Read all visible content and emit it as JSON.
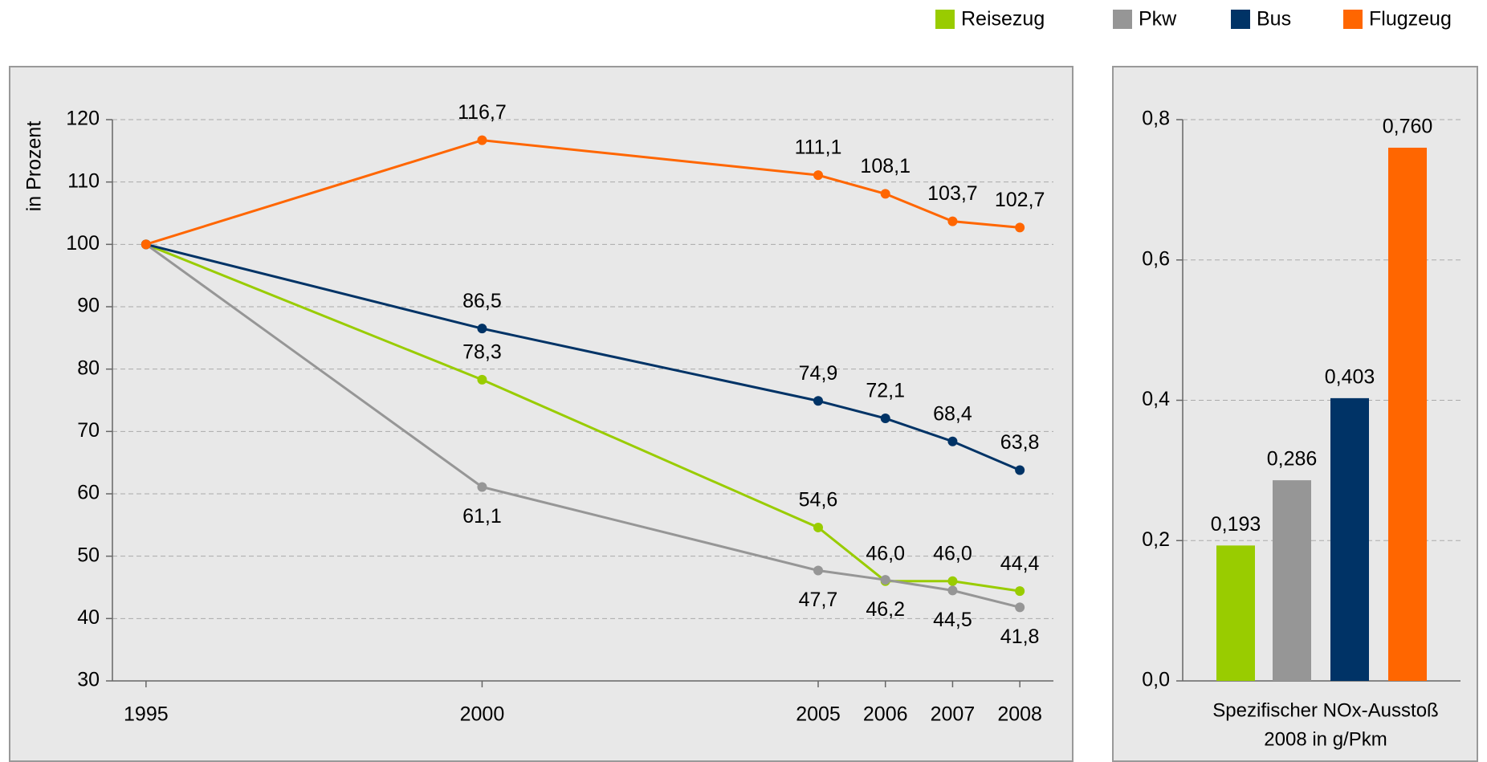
{
  "chart_data": [
    {
      "type": "line",
      "ylabel": "in Prozent",
      "x": [
        1995,
        2000,
        2005,
        2006,
        2007,
        2008
      ],
      "xlim": [
        1994.5,
        2008.5
      ],
      "xticks": [
        1995,
        2000,
        2005,
        2006,
        2007,
        2008
      ],
      "ylim": [
        30,
        120
      ],
      "yticks": [
        30,
        40,
        50,
        60,
        70,
        80,
        90,
        100,
        110,
        120
      ],
      "grid": true,
      "legend": "top-right",
      "series": [
        {
          "name": "Reisezug",
          "color": "#99cc00",
          "values": [
            100,
            78.3,
            54.6,
            46.0,
            46.0,
            44.4
          ],
          "value_labels": [
            null,
            "78,3",
            "54,6",
            "46,0",
            "46,0",
            "44,4"
          ]
        },
        {
          "name": "Pkw",
          "color": "#969696",
          "values": [
            100,
            61.1,
            47.7,
            46.2,
            44.5,
            41.8
          ],
          "value_labels": [
            null,
            "61,1",
            "47,7",
            "46,2",
            "44,5",
            "41,8"
          ]
        },
        {
          "name": "Bus",
          "color": "#003366",
          "values": [
            100,
            86.5,
            74.9,
            72.1,
            68.4,
            63.8
          ],
          "value_labels": [
            null,
            "86,5",
            "74,9",
            "72,1",
            "68,4",
            "63,8"
          ]
        },
        {
          "name": "Flugzeug",
          "color": "#ff6600",
          "values": [
            100,
            116.7,
            111.1,
            108.1,
            103.7,
            102.7
          ],
          "value_labels": [
            null,
            "116,7",
            "111,1",
            "108,1",
            "103,7",
            "102,7"
          ]
        }
      ]
    },
    {
      "type": "bar",
      "xlabel": [
        "Spezifischer NOx-Ausstoß",
        "2008 in g/Pkm"
      ],
      "values": [
        0.193,
        0.286,
        0.403,
        0.76
      ],
      "value_labels": [
        "0,193",
        "0,286",
        "0,403",
        "0,760"
      ],
      "colors": [
        "#99cc00",
        "#969696",
        "#003366",
        "#ff6600"
      ],
      "ylim": [
        0,
        0.8
      ],
      "yticks": [
        {
          "value": 0,
          "label": "0,0"
        },
        {
          "value": 0.2,
          "label": "0,2"
        },
        {
          "value": 0.4,
          "label": "0,4"
        },
        {
          "value": 0.6,
          "label": "0,6"
        },
        {
          "value": 0.8,
          "label": "0,8"
        }
      ],
      "grid": true
    }
  ]
}
